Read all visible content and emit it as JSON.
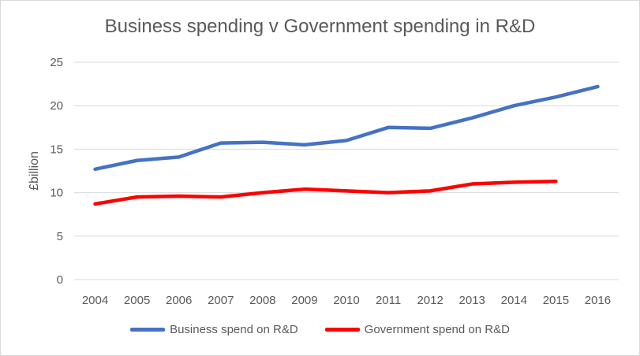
{
  "chart_data": {
    "type": "line",
    "title": "Business spending v Government spending in R&D",
    "ylabel": "£billion",
    "xlabel": "",
    "categories": [
      "2004",
      "2005",
      "2006",
      "2007",
      "2008",
      "2009",
      "2010",
      "2011",
      "2012",
      "2013",
      "2014",
      "2015",
      "2016"
    ],
    "ylim": [
      0,
      25
    ],
    "yticks": [
      0,
      5,
      10,
      15,
      20,
      25
    ],
    "grid": true,
    "legend": "bottom",
    "series": [
      {
        "name": "Business spend on R&D",
        "color": "#4472c4",
        "values": [
          12.7,
          13.7,
          14.1,
          15.7,
          15.8,
          15.5,
          16.0,
          17.5,
          17.4,
          18.6,
          20.0,
          21.0,
          22.2
        ]
      },
      {
        "name": "Government spend on R&D",
        "color": "#ff0000",
        "values": [
          8.7,
          9.5,
          9.6,
          9.5,
          10.0,
          10.4,
          10.2,
          10.0,
          10.2,
          11.0,
          11.2,
          11.3,
          null
        ]
      }
    ]
  }
}
